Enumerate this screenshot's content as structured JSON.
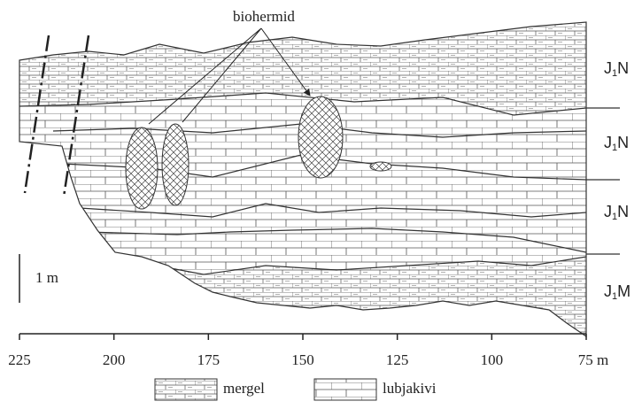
{
  "annotation": "biohermid",
  "scale_bar": "1 m",
  "units": [
    {
      "base": "J",
      "sub": "1",
      "suffix": "N"
    },
    {
      "base": "J",
      "sub": "1",
      "suffix": "N"
    },
    {
      "base": "J",
      "sub": "1",
      "suffix": "N"
    },
    {
      "base": "J",
      "sub": "1",
      "suffix": "M"
    }
  ],
  "axis": {
    "xlim": [
      225,
      75
    ],
    "xticks": [
      225,
      200,
      175,
      150,
      125,
      100,
      {
        "value": 75,
        "label": "75 m"
      }
    ]
  },
  "legend": [
    {
      "label": "mergel"
    },
    {
      "label": "lubjakivi"
    }
  ]
}
